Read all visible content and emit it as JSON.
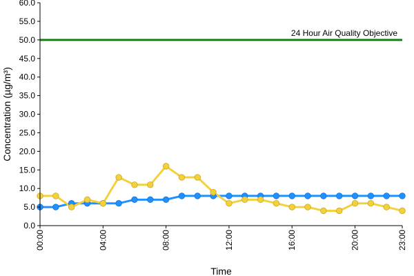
{
  "chart_data": {
    "type": "line",
    "xlabel": "Time",
    "ylabel": "Concentration (µg/m³)",
    "ylim": [
      0,
      60
    ],
    "y_ticks": [
      "0.0",
      "5.0",
      "10.0",
      "15.0",
      "20.0",
      "25.0",
      "30.0",
      "35.0",
      "40.0",
      "45.0",
      "50.0",
      "55.0",
      "60.0"
    ],
    "x_ticks": [
      "00:00",
      "04:00",
      "08:00",
      "12:00",
      "16:00",
      "20:00",
      "23:00"
    ],
    "x_tick_hours": [
      0,
      4,
      8,
      12,
      16,
      20,
      23
    ],
    "x": [
      0,
      1,
      2,
      3,
      4,
      5,
      6,
      7,
      8,
      9,
      10,
      11,
      12,
      13,
      14,
      15,
      16,
      17,
      18,
      19,
      20,
      21,
      22,
      23
    ],
    "series": [
      {
        "color": "#1e90ff",
        "values": [
          5,
          5,
          6,
          6,
          6,
          6,
          7,
          7,
          7,
          8,
          8,
          8,
          8,
          8,
          8,
          8,
          8,
          8,
          8,
          8,
          8,
          8,
          8,
          8
        ]
      },
      {
        "color": "#f2d13c",
        "values": [
          8,
          8,
          5,
          7,
          6,
          13,
          11,
          11,
          16,
          13,
          13,
          9,
          6,
          7,
          7,
          6,
          5,
          5,
          4,
          4,
          6,
          6,
          5,
          4
        ]
      }
    ],
    "reference_line": {
      "value": 50,
      "label": "24 Hour Air Quality Objective",
      "color": "#1a7a1a"
    },
    "grid": false
  }
}
